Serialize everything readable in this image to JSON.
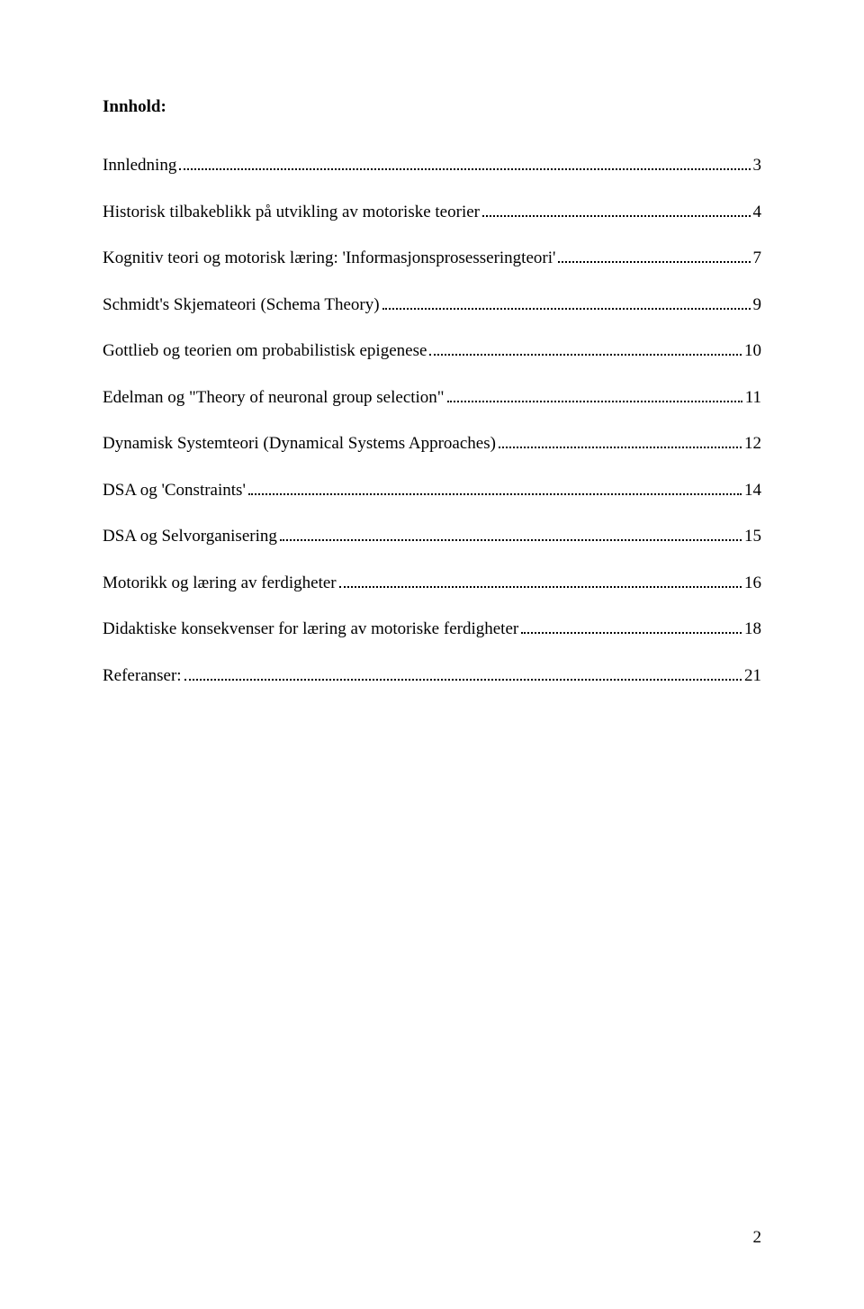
{
  "heading": "Innhold:",
  "toc": [
    {
      "label": "Innledning",
      "page": "3"
    },
    {
      "label": "Historisk tilbakeblikk på utvikling av motoriske teorier",
      "page": "4"
    },
    {
      "label": "Kognitiv teori og motorisk læring: 'Informasjonsprosesseringteori'",
      "page": "7"
    },
    {
      "label": "Schmidt's Skjemateori  (Schema Theory)",
      "page": "9"
    },
    {
      "label": "Gottlieb og teorien om probabilistisk epigenese",
      "page": "10"
    },
    {
      "label": "Edelman og \"Theory of neuronal group selection\"",
      "page": "11"
    },
    {
      "label": "Dynamisk Systemteori (Dynamical Systems Approaches)",
      "page": "12"
    },
    {
      "label": "DSA og 'Constraints'",
      "page": "14"
    },
    {
      "label": "DSA og Selvorganisering",
      "page": "15"
    },
    {
      "label": "Motorikk og læring av ferdigheter",
      "page": "16"
    },
    {
      "label": "Didaktiske konsekvenser for læring av motoriske ferdigheter",
      "page": "18"
    },
    {
      "label": "Referanser:",
      "page": "21"
    }
  ],
  "footer_page": "2",
  "colors": {
    "background": "#ffffff",
    "text": "#000000"
  },
  "typography": {
    "font_family": "Times New Roman",
    "body_fontsize_pt": 14,
    "heading_weight": "bold"
  }
}
